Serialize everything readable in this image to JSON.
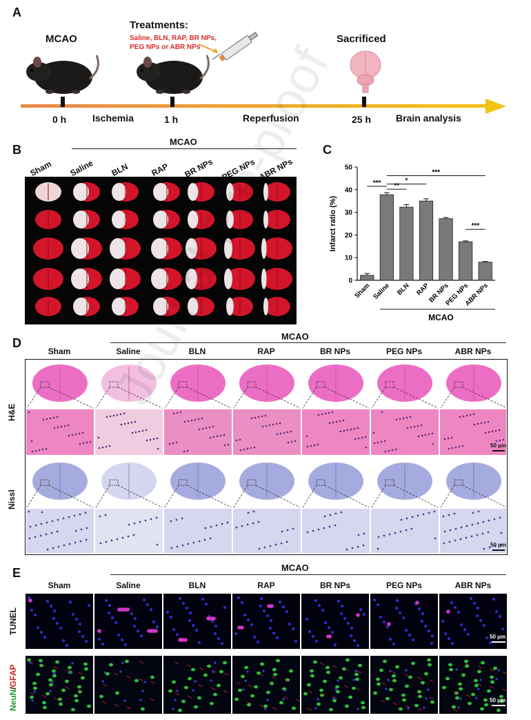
{
  "panels": {
    "A": {
      "letter": "A",
      "mcao": "MCAO",
      "treatments_title": "Treatments:",
      "treatments_line1": "Saline, BLN, RAP, BR NPs,",
      "treatments_line2": "PEG NPs or ABR NPs",
      "sacrificed": "Sacrificed",
      "time_0": "0 h",
      "ischemia": "Ischemia",
      "time_1": "1 h",
      "reperfusion": "Reperfusion",
      "time_25": "25 h",
      "brain_analysis": "Brain analysis",
      "colors": {
        "timeline_start": "#e8874a",
        "timeline_end": "#f3c313",
        "treatment_text": "#d92b2b"
      }
    },
    "B": {
      "letter": "B",
      "mcao": "MCAO",
      "groups": [
        "Sham",
        "Saline",
        "BLN",
        "RAP",
        "BR NPs",
        "PEG NPs",
        "ABR NPs"
      ]
    },
    "C": {
      "letter": "C"
    },
    "D": {
      "letter": "D",
      "mcao": "MCAO",
      "groups": [
        "Sham",
        "Saline",
        "BLN",
        "RAP",
        "BR NPs",
        "PEG NPs",
        "ABR NPs"
      ],
      "row_he": "H&E",
      "row_nissl": "Nissl",
      "scale_he": "50 μm",
      "scale_nissl": "50 μm"
    },
    "E": {
      "letter": "E",
      "mcao": "MCAO",
      "groups": [
        "Sham",
        "Saline",
        "BLN",
        "RAP",
        "BR NPs",
        "PEG NPs",
        "ABR NPs"
      ],
      "row_tunel": "TUNEL",
      "row_neun": "NeuN",
      "row_sep": "/",
      "row_gfap": "GFAP",
      "scale_tunel": "50 μm",
      "scale_neun": "50 μm"
    }
  },
  "watermark": "Journal Pre-proof",
  "chart_data": {
    "type": "bar",
    "categories": [
      "Sham",
      "Saline",
      "BLN",
      "RAP",
      "BR NPs",
      "PEG NPs",
      "ABR NPs"
    ],
    "values": [
      2.2,
      37.8,
      32.3,
      35.0,
      27.2,
      17.0,
      8.0
    ],
    "errors": [
      0.8,
      0.9,
      1.1,
      1.0,
      0.5,
      0.4,
      0.3
    ],
    "ylabel": "Infarct ratio (%)",
    "xlabel": "MCAO",
    "ylim": [
      0,
      50
    ],
    "yticks": [
      0,
      10,
      20,
      30,
      40,
      50
    ],
    "significance": [
      {
        "from": "Sham",
        "to": "Saline",
        "label": "***"
      },
      {
        "from": "Saline",
        "to": "BLN",
        "label": "**"
      },
      {
        "from": "Saline",
        "to": "RAP",
        "label": "*"
      },
      {
        "from": "Saline",
        "to": "ABR NPs",
        "label": "***"
      },
      {
        "from": "PEG NPs",
        "to": "ABR NPs",
        "label": "***"
      }
    ],
    "bar_color": "#7a7a7a",
    "grid": false
  }
}
